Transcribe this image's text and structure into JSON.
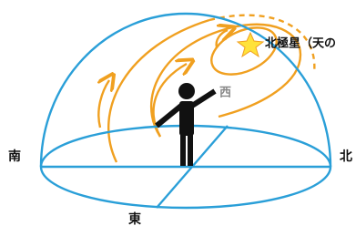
{
  "labels": {
    "polaris": "北極星（天の",
    "west": "西",
    "south": "南",
    "north": "北",
    "east": "東"
  }
}
